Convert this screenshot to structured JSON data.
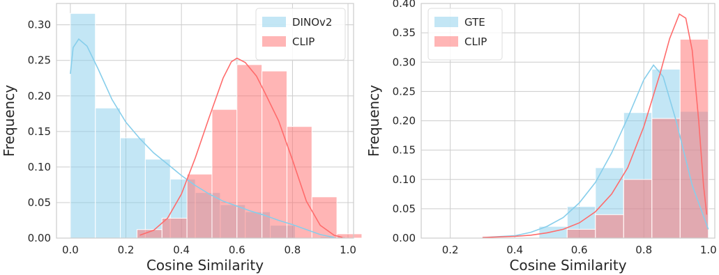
{
  "chart_data": [
    {
      "type": "histogram",
      "xlabel": "Cosine Similarity",
      "ylabel": "Frequency",
      "xlim": [
        -0.05,
        1.02
      ],
      "ylim": [
        0,
        0.33
      ],
      "xticks": [
        "0.0",
        "0.2",
        "0.4",
        "0.6",
        "0.8",
        "1.0"
      ],
      "yticks": [
        "0.00",
        "0.05",
        "0.10",
        "0.15",
        "0.20",
        "0.25",
        "0.30"
      ],
      "grid": true,
      "legend_position": "top-right",
      "series": [
        {
          "name": "DINOv2",
          "color": "#87CEEB",
          "bin_width": 0.09,
          "bins": [
            {
              "x0": 0.0,
              "x1": 0.09,
              "y": 0.316
            },
            {
              "x0": 0.09,
              "x1": 0.18,
              "y": 0.183
            },
            {
              "x0": 0.18,
              "x1": 0.27,
              "y": 0.141
            },
            {
              "x0": 0.27,
              "x1": 0.36,
              "y": 0.111
            },
            {
              "x0": 0.36,
              "x1": 0.45,
              "y": 0.083
            },
            {
              "x0": 0.45,
              "x1": 0.54,
              "y": 0.064
            },
            {
              "x0": 0.54,
              "x1": 0.63,
              "y": 0.047
            },
            {
              "x0": 0.63,
              "x1": 0.72,
              "y": 0.037
            },
            {
              "x0": 0.72,
              "x1": 0.81,
              "y": 0.018
            },
            {
              "x0": 0.81,
              "x1": 0.9,
              "y": 0.0
            },
            {
              "x0": 0.9,
              "x1": 0.99,
              "y": 0.002
            }
          ],
          "kde": [
            [
              0.0,
              0.231
            ],
            [
              0.01,
              0.268
            ],
            [
              0.03,
              0.28
            ],
            [
              0.06,
              0.27
            ],
            [
              0.1,
              0.238
            ],
            [
              0.15,
              0.195
            ],
            [
              0.2,
              0.163
            ],
            [
              0.25,
              0.14
            ],
            [
              0.3,
              0.12
            ],
            [
              0.35,
              0.104
            ],
            [
              0.4,
              0.088
            ],
            [
              0.45,
              0.074
            ],
            [
              0.5,
              0.062
            ],
            [
              0.55,
              0.052
            ],
            [
              0.6,
              0.045
            ],
            [
              0.65,
              0.038
            ],
            [
              0.7,
              0.032
            ],
            [
              0.75,
              0.025
            ],
            [
              0.8,
              0.019
            ],
            [
              0.85,
              0.012
            ],
            [
              0.9,
              0.005
            ],
            [
              0.95,
              0.001
            ]
          ]
        },
        {
          "name": "CLIP",
          "color": "#FF6B6B",
          "bin_width": 0.09,
          "bins": [
            {
              "x0": 0.24,
              "x1": 0.33,
              "y": 0.012
            },
            {
              "x0": 0.33,
              "x1": 0.42,
              "y": 0.028
            },
            {
              "x0": 0.42,
              "x1": 0.51,
              "y": 0.09
            },
            {
              "x0": 0.51,
              "x1": 0.6,
              "y": 0.181
            },
            {
              "x0": 0.6,
              "x1": 0.69,
              "y": 0.244
            },
            {
              "x0": 0.69,
              "x1": 0.78,
              "y": 0.235
            },
            {
              "x0": 0.78,
              "x1": 0.87,
              "y": 0.157
            },
            {
              "x0": 0.87,
              "x1": 0.96,
              "y": 0.058
            },
            {
              "x0": 0.96,
              "x1": 1.05,
              "y": 0.006
            }
          ],
          "kde": [
            [
              0.25,
              0.004
            ],
            [
              0.3,
              0.011
            ],
            [
              0.35,
              0.028
            ],
            [
              0.4,
              0.062
            ],
            [
              0.45,
              0.113
            ],
            [
              0.5,
              0.17
            ],
            [
              0.55,
              0.225
            ],
            [
              0.58,
              0.248
            ],
            [
              0.6,
              0.253
            ],
            [
              0.63,
              0.247
            ],
            [
              0.67,
              0.228
            ],
            [
              0.7,
              0.205
            ],
            [
              0.75,
              0.165
            ],
            [
              0.8,
              0.11
            ],
            [
              0.85,
              0.052
            ],
            [
              0.9,
              0.018
            ],
            [
              0.95,
              0.004
            ],
            [
              0.98,
              0.001
            ]
          ]
        }
      ]
    },
    {
      "type": "histogram",
      "xlabel": "Cosine Similarity",
      "ylabel": "Frequency",
      "xlim": [
        0.11,
        1.02
      ],
      "ylim": [
        0,
        0.4
      ],
      "xticks": [
        "0.2",
        "0.4",
        "0.6",
        "0.8",
        "1.0"
      ],
      "yticks": [
        "0.00",
        "0.05",
        "0.10",
        "0.15",
        "0.20",
        "0.25",
        "0.30",
        "0.35",
        "0.40"
      ],
      "grid": true,
      "legend_position": "top-left",
      "series": [
        {
          "name": "GTE",
          "color": "#87CEEB",
          "bin_width": 0.0875,
          "bins": [
            {
              "x0": 0.475,
              "x1": 0.5625,
              "y": 0.02
            },
            {
              "x0": 0.5625,
              "x1": 0.65,
              "y": 0.054
            },
            {
              "x0": 0.65,
              "x1": 0.7375,
              "y": 0.12
            },
            {
              "x0": 0.7375,
              "x1": 0.825,
              "y": 0.214
            },
            {
              "x0": 0.825,
              "x1": 0.9125,
              "y": 0.288
            },
            {
              "x0": 0.9125,
              "x1": 1.0,
              "y": 0.216
            }
          ],
          "kde": [
            [
              0.3,
              0.001
            ],
            [
              0.4,
              0.004
            ],
            [
              0.45,
              0.01
            ],
            [
              0.5,
              0.02
            ],
            [
              0.55,
              0.035
            ],
            [
              0.6,
              0.06
            ],
            [
              0.65,
              0.095
            ],
            [
              0.7,
              0.145
            ],
            [
              0.75,
              0.205
            ],
            [
              0.8,
              0.27
            ],
            [
              0.83,
              0.295
            ],
            [
              0.86,
              0.275
            ],
            [
              0.9,
              0.2
            ],
            [
              0.95,
              0.09
            ],
            [
              1.0,
              0.015
            ]
          ]
        },
        {
          "name": "CLIP",
          "color": "#FF6B6B",
          "bin_width": 0.0875,
          "bins": [
            {
              "x0": 0.5625,
              "x1": 0.65,
              "y": 0.015
            },
            {
              "x0": 0.65,
              "x1": 0.7375,
              "y": 0.04
            },
            {
              "x0": 0.7375,
              "x1": 0.825,
              "y": 0.1
            },
            {
              "x0": 0.825,
              "x1": 0.9125,
              "y": 0.204
            },
            {
              "x0": 0.9125,
              "x1": 1.0,
              "y": 0.339
            }
          ],
          "kde": [
            [
              0.3,
              0.001
            ],
            [
              0.4,
              0.003
            ],
            [
              0.45,
              0.005
            ],
            [
              0.5,
              0.009
            ],
            [
              0.55,
              0.015
            ],
            [
              0.6,
              0.026
            ],
            [
              0.65,
              0.045
            ],
            [
              0.7,
              0.075
            ],
            [
              0.75,
              0.12
            ],
            [
              0.8,
              0.19
            ],
            [
              0.85,
              0.28
            ],
            [
              0.88,
              0.34
            ],
            [
              0.91,
              0.382
            ],
            [
              0.93,
              0.375
            ],
            [
              0.95,
              0.32
            ],
            [
              0.97,
              0.2
            ],
            [
              0.985,
              0.09
            ],
            [
              0.995,
              0.04
            ]
          ]
        }
      ]
    }
  ]
}
